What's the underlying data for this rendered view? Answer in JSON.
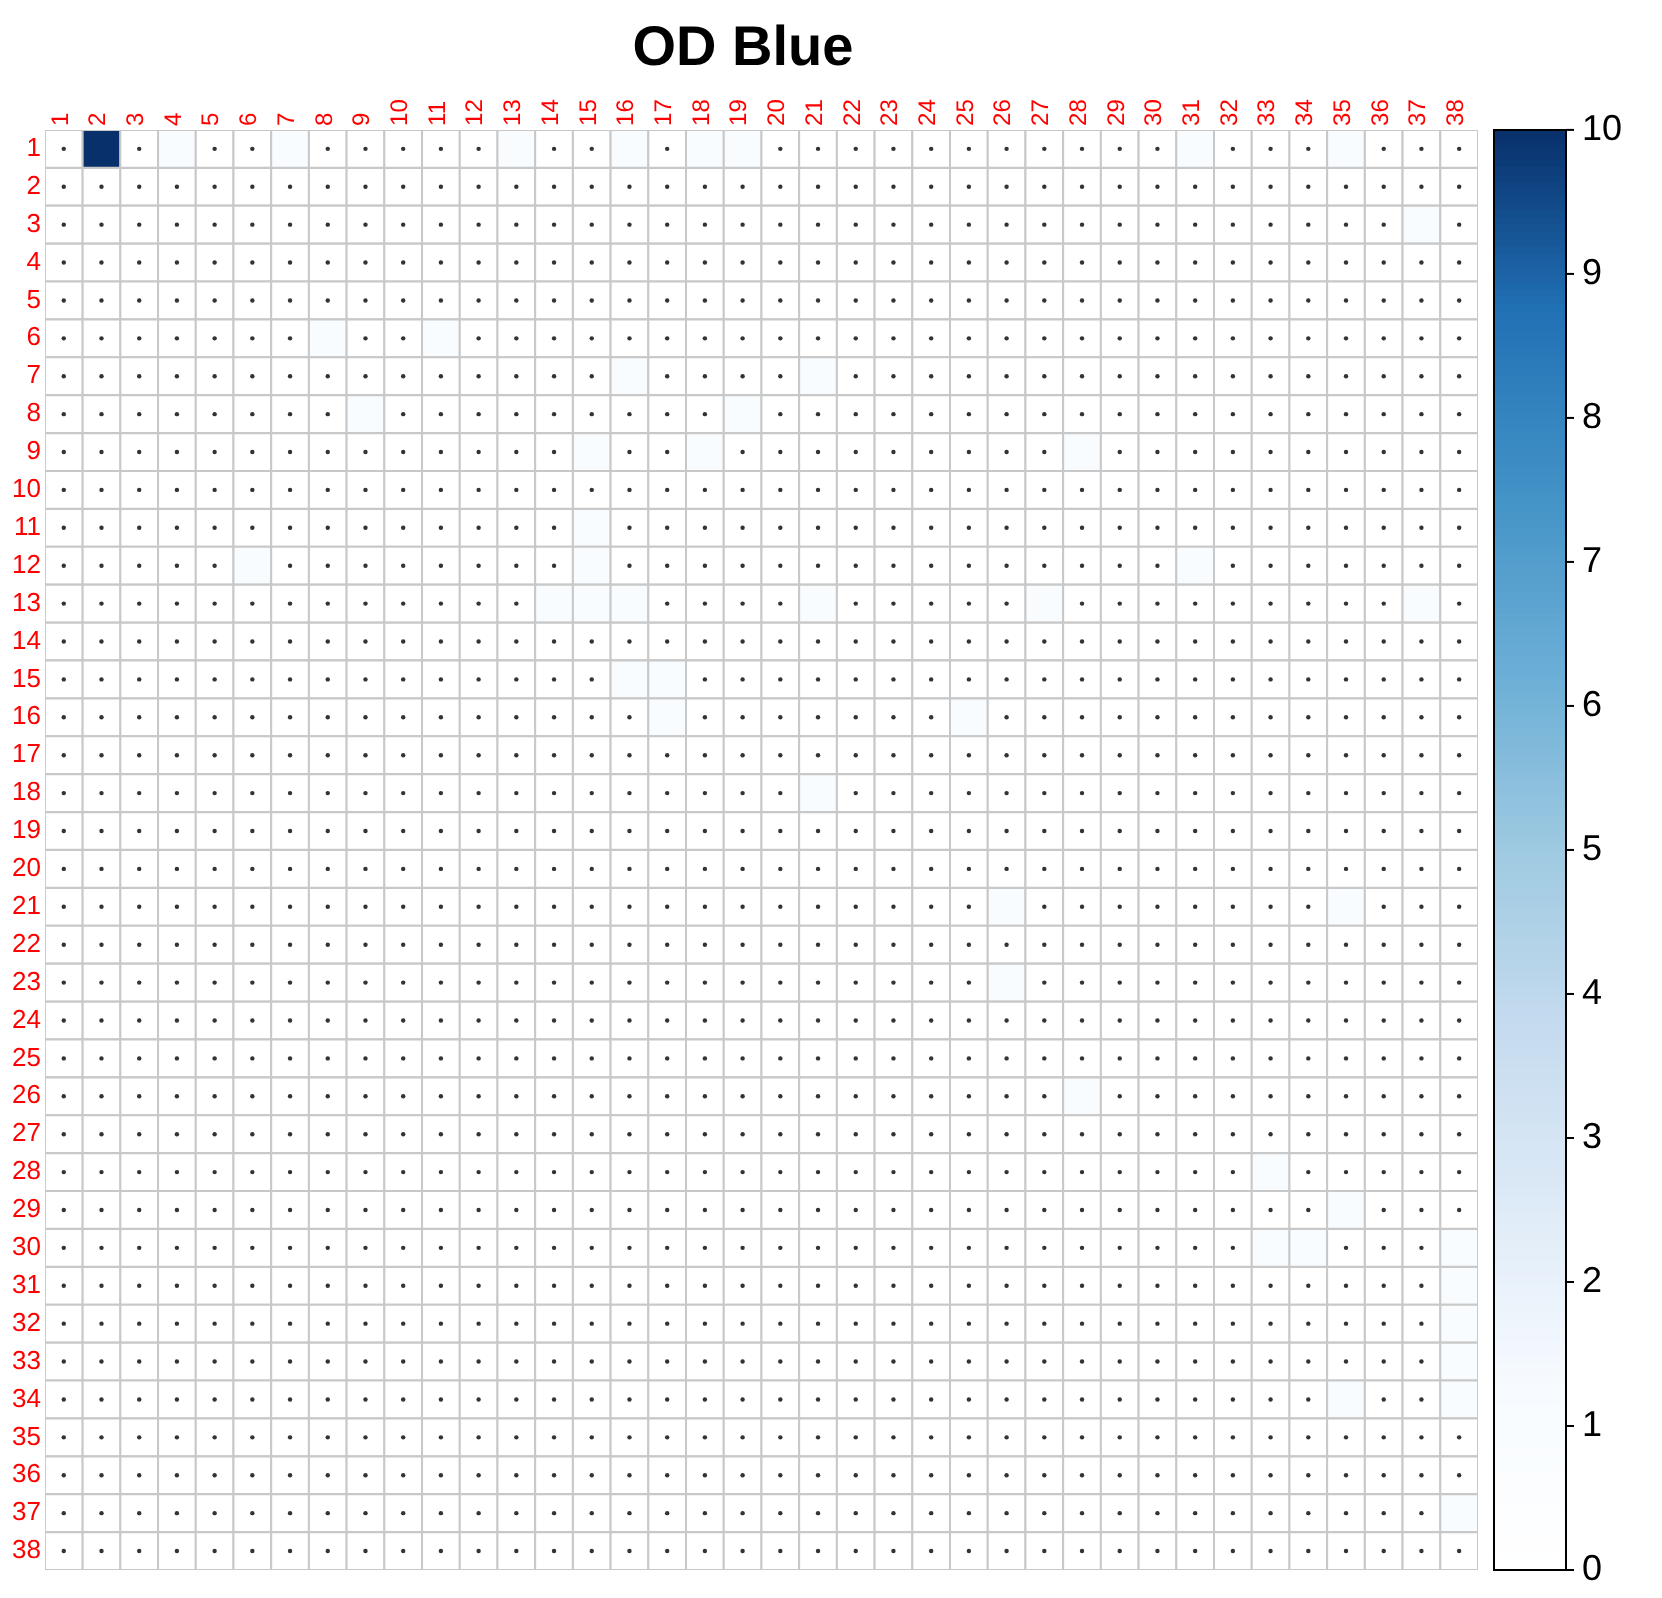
{
  "chart_data": {
    "type": "heatmap",
    "title": "OD Blue",
    "categories": [
      "1",
      "2",
      "3",
      "4",
      "5",
      "6",
      "7",
      "8",
      "9",
      "10",
      "11",
      "12",
      "13",
      "14",
      "15",
      "16",
      "17",
      "18",
      "19",
      "20",
      "21",
      "22",
      "23",
      "24",
      "25",
      "26",
      "27",
      "28",
      "29",
      "30",
      "31",
      "32",
      "33",
      "34",
      "35",
      "36",
      "37",
      "38"
    ],
    "y_categories": [
      "1",
      "2",
      "3",
      "4",
      "5",
      "6",
      "7",
      "8",
      "9",
      "10",
      "11",
      "12",
      "13",
      "14",
      "15",
      "16",
      "17",
      "18",
      "19",
      "20",
      "21",
      "22",
      "23",
      "24",
      "25",
      "26",
      "27",
      "28",
      "29",
      "30",
      "31",
      "32",
      "33",
      "34",
      "35",
      "36",
      "37",
      "38"
    ],
    "clim": [
      0,
      10
    ],
    "cticks": [
      0,
      1,
      2,
      3,
      4,
      5,
      6,
      7,
      8,
      9,
      10
    ],
    "cells": [
      [
        0,
        10,
        0,
        1,
        0,
        0,
        1,
        0,
        0,
        0,
        0,
        0,
        1,
        0,
        0,
        1,
        0,
        1,
        1,
        0,
        0,
        0,
        0,
        0,
        0,
        0,
        0,
        0,
        0,
        0,
        1,
        0,
        0,
        0,
        1,
        0,
        0,
        0
      ],
      [
        0,
        0,
        0,
        0,
        0,
        0,
        0,
        0,
        0,
        0,
        0,
        0,
        0,
        0,
        0,
        0,
        0,
        0,
        0,
        0,
        0,
        0,
        0,
        0,
        0,
        0,
        0,
        0,
        0,
        0,
        0,
        0,
        0,
        0,
        0,
        0,
        0,
        0
      ],
      [
        0,
        0,
        0,
        0,
        0,
        0,
        0,
        0,
        0,
        0,
        0,
        0,
        0,
        0,
        0,
        0,
        0,
        0,
        0,
        0,
        0,
        0,
        0,
        0,
        0,
        0,
        0,
        0,
        0,
        0,
        0,
        0,
        0,
        0,
        0,
        0,
        1,
        0
      ],
      [
        0,
        0,
        0,
        0,
        0,
        0,
        0,
        0,
        0,
        0,
        0,
        0,
        0,
        0,
        0,
        0,
        0,
        0,
        0,
        0,
        0,
        0,
        0,
        0,
        0,
        0,
        0,
        0,
        0,
        0,
        0,
        0,
        0,
        0,
        0,
        0,
        0,
        0
      ],
      [
        0,
        0,
        0,
        0,
        0,
        0,
        0,
        0,
        0,
        0,
        0,
        0,
        0,
        0,
        0,
        0,
        0,
        0,
        0,
        0,
        0,
        0,
        0,
        0,
        0,
        0,
        0,
        0,
        0,
        0,
        0,
        0,
        0,
        0,
        0,
        0,
        0,
        0
      ],
      [
        0,
        0,
        0,
        0,
        0,
        0,
        0,
        1,
        0,
        0,
        1,
        0,
        0,
        0,
        0,
        0,
        0,
        0,
        0,
        0,
        0,
        0,
        0,
        0,
        0,
        0,
        0,
        0,
        0,
        0,
        0,
        0,
        0,
        0,
        0,
        0,
        0,
        0
      ],
      [
        0,
        0,
        0,
        0,
        0,
        0,
        0,
        0,
        0,
        0,
        0,
        0,
        0,
        0,
        0,
        1,
        0,
        0,
        0,
        0,
        1,
        0,
        0,
        0,
        0,
        0,
        0,
        0,
        0,
        0,
        0,
        0,
        0,
        0,
        0,
        0,
        0,
        0
      ],
      [
        0,
        0,
        0,
        0,
        0,
        0,
        0,
        0,
        1,
        0,
        0,
        0,
        0,
        0,
        0,
        0,
        0,
        0,
        1,
        0,
        0,
        0,
        0,
        0,
        0,
        0,
        0,
        0,
        0,
        0,
        0,
        0,
        0,
        0,
        0,
        0,
        0,
        0
      ],
      [
        0,
        0,
        0,
        0,
        0,
        0,
        0,
        0,
        0,
        0,
        0,
        0,
        0,
        0,
        1,
        0,
        0,
        1,
        0,
        0,
        0,
        0,
        0,
        0,
        0,
        0,
        0,
        1,
        0,
        0,
        0,
        0,
        0,
        0,
        0,
        0,
        0,
        0
      ],
      [
        0,
        0,
        0,
        0,
        0,
        0,
        0,
        0,
        0,
        0,
        0,
        0,
        0,
        0,
        0,
        0,
        0,
        0,
        0,
        0,
        0,
        0,
        0,
        0,
        0,
        0,
        0,
        0,
        0,
        0,
        0,
        0,
        0,
        0,
        0,
        0,
        0,
        0
      ],
      [
        0,
        0,
        0,
        0,
        0,
        0,
        0,
        0,
        0,
        0,
        0,
        0,
        0,
        0,
        1,
        0,
        0,
        0,
        0,
        0,
        0,
        0,
        0,
        0,
        0,
        0,
        0,
        0,
        0,
        0,
        0,
        0,
        0,
        0,
        0,
        0,
        0,
        0
      ],
      [
        0,
        0,
        0,
        0,
        0,
        1,
        0,
        0,
        0,
        0,
        0,
        0,
        0,
        0,
        1,
        0,
        0,
        0,
        0,
        0,
        0,
        0,
        0,
        0,
        0,
        0,
        0,
        0,
        0,
        0,
        1,
        0,
        0,
        0,
        0,
        0,
        0,
        0
      ],
      [
        0,
        0,
        0,
        0,
        0,
        0,
        0,
        0,
        0,
        0,
        0,
        0,
        0,
        1,
        1,
        1,
        0,
        0,
        0,
        0,
        1,
        0,
        0,
        0,
        0,
        0,
        1,
        0,
        0,
        0,
        0,
        0,
        0,
        0,
        0,
        0,
        1,
        0
      ],
      [
        0,
        0,
        0,
        0,
        0,
        0,
        0,
        0,
        0,
        0,
        0,
        0,
        0,
        0,
        0,
        0,
        0,
        0,
        0,
        0,
        0,
        0,
        0,
        0,
        0,
        0,
        0,
        0,
        0,
        0,
        0,
        0,
        0,
        0,
        0,
        0,
        0,
        0
      ],
      [
        0,
        0,
        0,
        0,
        0,
        0,
        0,
        0,
        0,
        0,
        0,
        0,
        0,
        0,
        0,
        1,
        1,
        0,
        0,
        0,
        0,
        0,
        0,
        0,
        0,
        0,
        0,
        0,
        0,
        0,
        0,
        0,
        0,
        0,
        0,
        0,
        0,
        0
      ],
      [
        0,
        0,
        0,
        0,
        0,
        0,
        0,
        0,
        0,
        0,
        0,
        0,
        0,
        0,
        0,
        0,
        1,
        0,
        0,
        0,
        0,
        0,
        0,
        0,
        1,
        0,
        0,
        0,
        0,
        0,
        0,
        0,
        0,
        0,
        0,
        0,
        0,
        0
      ],
      [
        0,
        0,
        0,
        0,
        0,
        0,
        0,
        0,
        0,
        0,
        0,
        0,
        0,
        0,
        0,
        0,
        0,
        0,
        0,
        0,
        0,
        0,
        0,
        0,
        0,
        0,
        0,
        0,
        0,
        0,
        0,
        0,
        0,
        0,
        0,
        0,
        0,
        0
      ],
      [
        0,
        0,
        0,
        0,
        0,
        0,
        0,
        0,
        0,
        0,
        0,
        0,
        0,
        0,
        0,
        0,
        0,
        0,
        0,
        0,
        1,
        0,
        0,
        0,
        0,
        0,
        0,
        0,
        0,
        0,
        0,
        0,
        0,
        0,
        0,
        0,
        0,
        0
      ],
      [
        0,
        0,
        0,
        0,
        0,
        0,
        0,
        0,
        0,
        0,
        0,
        0,
        0,
        0,
        0,
        0,
        0,
        0,
        0,
        0,
        0,
        0,
        0,
        0,
        0,
        0,
        0,
        0,
        0,
        0,
        0,
        0,
        0,
        0,
        0,
        0,
        0,
        0
      ],
      [
        0,
        0,
        0,
        0,
        0,
        0,
        0,
        0,
        0,
        0,
        0,
        0,
        0,
        0,
        0,
        0,
        0,
        0,
        0,
        0,
        0,
        0,
        0,
        0,
        0,
        0,
        0,
        0,
        0,
        0,
        0,
        0,
        0,
        0,
        0,
        0,
        0,
        0
      ],
      [
        0,
        0,
        0,
        0,
        0,
        0,
        0,
        0,
        0,
        0,
        0,
        0,
        0,
        0,
        0,
        0,
        0,
        0,
        0,
        0,
        0,
        0,
        0,
        0,
        0,
        1,
        0,
        0,
        0,
        0,
        0,
        0,
        0,
        0,
        1,
        0,
        0,
        0
      ],
      [
        0,
        0,
        0,
        0,
        0,
        0,
        0,
        0,
        0,
        0,
        0,
        0,
        0,
        0,
        0,
        0,
        0,
        0,
        0,
        0,
        0,
        0,
        0,
        0,
        0,
        0,
        0,
        0,
        0,
        0,
        0,
        0,
        0,
        0,
        0,
        0,
        0,
        0
      ],
      [
        0,
        0,
        0,
        0,
        0,
        0,
        0,
        0,
        0,
        0,
        0,
        0,
        0,
        0,
        0,
        0,
        0,
        0,
        0,
        0,
        0,
        0,
        0,
        0,
        0,
        1,
        0,
        0,
        0,
        0,
        0,
        0,
        0,
        0,
        0,
        0,
        0,
        0
      ],
      [
        0,
        0,
        0,
        0,
        0,
        0,
        0,
        0,
        0,
        0,
        0,
        0,
        0,
        0,
        0,
        0,
        0,
        0,
        0,
        0,
        0,
        0,
        0,
        0,
        0,
        0,
        0,
        0,
        0,
        0,
        0,
        0,
        0,
        0,
        0,
        0,
        0,
        0
      ],
      [
        0,
        0,
        0,
        0,
        0,
        0,
        0,
        0,
        0,
        0,
        0,
        0,
        0,
        0,
        0,
        0,
        0,
        0,
        0,
        0,
        0,
        0,
        0,
        0,
        0,
        0,
        0,
        0,
        0,
        0,
        0,
        0,
        0,
        0,
        0,
        0,
        0,
        0
      ],
      [
        0,
        0,
        0,
        0,
        0,
        0,
        0,
        0,
        0,
        0,
        0,
        0,
        0,
        0,
        0,
        0,
        0,
        0,
        0,
        0,
        0,
        0,
        0,
        0,
        0,
        0,
        0,
        1,
        0,
        0,
        0,
        0,
        0,
        0,
        0,
        0,
        0,
        0
      ],
      [
        0,
        0,
        0,
        0,
        0,
        0,
        0,
        0,
        0,
        0,
        0,
        0,
        0,
        0,
        0,
        0,
        0,
        0,
        0,
        0,
        0,
        0,
        0,
        0,
        0,
        0,
        0,
        0,
        0,
        0,
        0,
        0,
        0,
        0,
        0,
        0,
        0,
        0
      ],
      [
        0,
        0,
        0,
        0,
        0,
        0,
        0,
        0,
        0,
        0,
        0,
        0,
        0,
        0,
        0,
        0,
        0,
        0,
        0,
        0,
        0,
        0,
        0,
        0,
        0,
        0,
        0,
        0,
        0,
        0,
        0,
        0,
        1,
        0,
        0,
        0,
        0,
        0
      ],
      [
        0,
        0,
        0,
        0,
        0,
        0,
        0,
        0,
        0,
        0,
        0,
        0,
        0,
        0,
        0,
        0,
        0,
        0,
        0,
        0,
        0,
        0,
        0,
        0,
        0,
        0,
        0,
        0,
        0,
        0,
        0,
        0,
        0,
        0,
        1,
        0,
        0,
        0
      ],
      [
        0,
        0,
        0,
        0,
        0,
        0,
        0,
        0,
        0,
        0,
        0,
        0,
        0,
        0,
        0,
        0,
        0,
        0,
        0,
        0,
        0,
        0,
        0,
        0,
        0,
        0,
        0,
        0,
        0,
        0,
        0,
        0,
        1,
        1,
        0,
        0,
        0,
        1
      ],
      [
        0,
        0,
        0,
        0,
        0,
        0,
        0,
        0,
        0,
        0,
        0,
        0,
        0,
        0,
        0,
        0,
        0,
        0,
        0,
        0,
        0,
        0,
        0,
        0,
        0,
        0,
        0,
        0,
        0,
        0,
        0,
        0,
        0,
        0,
        0,
        0,
        0,
        1
      ],
      [
        0,
        0,
        0,
        0,
        0,
        0,
        0,
        0,
        0,
        0,
        0,
        0,
        0,
        0,
        0,
        0,
        0,
        0,
        0,
        0,
        0,
        0,
        0,
        0,
        0,
        0,
        0,
        0,
        0,
        0,
        0,
        0,
        0,
        0,
        0,
        0,
        0,
        1
      ],
      [
        0,
        0,
        0,
        0,
        0,
        0,
        0,
        0,
        0,
        0,
        0,
        0,
        0,
        0,
        0,
        0,
        0,
        0,
        0,
        0,
        0,
        0,
        0,
        0,
        0,
        0,
        0,
        0,
        0,
        0,
        0,
        0,
        0,
        0,
        0,
        0,
        0,
        1
      ],
      [
        0,
        0,
        0,
        0,
        0,
        0,
        0,
        0,
        0,
        0,
        0,
        0,
        0,
        0,
        0,
        0,
        0,
        0,
        0,
        0,
        0,
        0,
        0,
        0,
        0,
        0,
        0,
        0,
        0,
        0,
        0,
        0,
        0,
        0,
        1,
        0,
        0,
        1
      ],
      [
        0,
        0,
        0,
        0,
        0,
        0,
        0,
        0,
        0,
        0,
        0,
        0,
        0,
        0,
        0,
        0,
        0,
        0,
        0,
        0,
        0,
        0,
        0,
        0,
        0,
        0,
        0,
        0,
        0,
        0,
        0,
        0,
        0,
        0,
        0,
        0,
        0,
        0
      ],
      [
        0,
        0,
        0,
        0,
        0,
        0,
        0,
        0,
        0,
        0,
        0,
        0,
        0,
        0,
        0,
        0,
        0,
        0,
        0,
        0,
        0,
        0,
        0,
        0,
        0,
        0,
        0,
        0,
        0,
        0,
        0,
        0,
        0,
        0,
        0,
        0,
        0,
        0
      ],
      [
        0,
        0,
        0,
        0,
        0,
        0,
        0,
        0,
        0,
        0,
        0,
        0,
        0,
        0,
        0,
        0,
        0,
        0,
        0,
        0,
        0,
        0,
        0,
        0,
        0,
        0,
        0,
        0,
        0,
        0,
        0,
        0,
        0,
        0,
        0,
        0,
        0,
        1
      ],
      [
        0,
        0,
        0,
        0,
        0,
        0,
        0,
        0,
        0,
        0,
        0,
        0,
        0,
        0,
        0,
        0,
        0,
        0,
        0,
        0,
        0,
        0,
        0,
        0,
        0,
        0,
        0,
        0,
        0,
        0,
        0,
        0,
        0,
        0,
        0,
        0,
        0,
        0
      ]
    ]
  }
}
